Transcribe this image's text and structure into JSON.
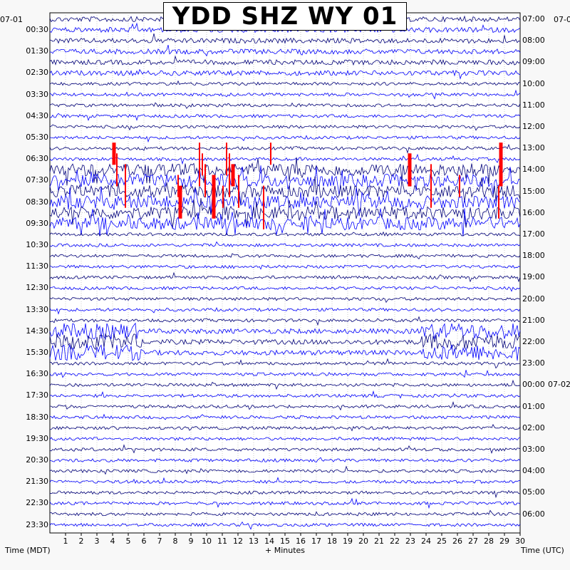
{
  "chart_data": {
    "type": "helicorder",
    "title": "YDD SHZ WY 01",
    "left_date": "07-01",
    "right_date_top": "07-0",
    "right_date_mid": "07-02",
    "xlabel": "+ Minutes",
    "left_axis_label": "Time (MDT)",
    "right_axis_label": "Time (UTC)",
    "x_ticks": [
      "1",
      "2",
      "3",
      "4",
      "5",
      "6",
      "7",
      "8",
      "9",
      "10",
      "11",
      "12",
      "13",
      "14",
      "15",
      "16",
      "17",
      "18",
      "19",
      "20",
      "21",
      "22",
      "23",
      "24",
      "25",
      "26",
      "27",
      "28",
      "29",
      "30"
    ],
    "xlim": [
      0,
      30
    ],
    "left_row_labels": [
      "00:30",
      "01:30",
      "02:30",
      "03:30",
      "04:30",
      "05:30",
      "06:30",
      "07:30",
      "08:30",
      "09:30",
      "10:30",
      "11:30",
      "12:30",
      "13:30",
      "14:30",
      "15:30",
      "16:30",
      "17:30",
      "18:30",
      "19:30",
      "20:30",
      "21:30",
      "22:30",
      "23:30"
    ],
    "right_row_labels": [
      "07:00",
      "08:00",
      "09:00",
      "10:00",
      "11:00",
      "12:00",
      "13:00",
      "14:00",
      "15:00",
      "16:00",
      "17:00",
      "18:00",
      "19:00",
      "20:00",
      "21:00",
      "22:00",
      "23:00",
      "00:00",
      "01:00",
      "02:00",
      "03:00",
      "04:00",
      "05:00",
      "06:00"
    ],
    "rows": 48,
    "minutes_per_row": 30,
    "trace_colors": [
      "#00007a",
      "#0000ff"
    ],
    "clip_color": "#ff0000",
    "activity": {
      "busy_rows": [
        14,
        15,
        16,
        17,
        18,
        19
      ],
      "burst_rows": [
        29,
        30,
        31
      ]
    }
  }
}
